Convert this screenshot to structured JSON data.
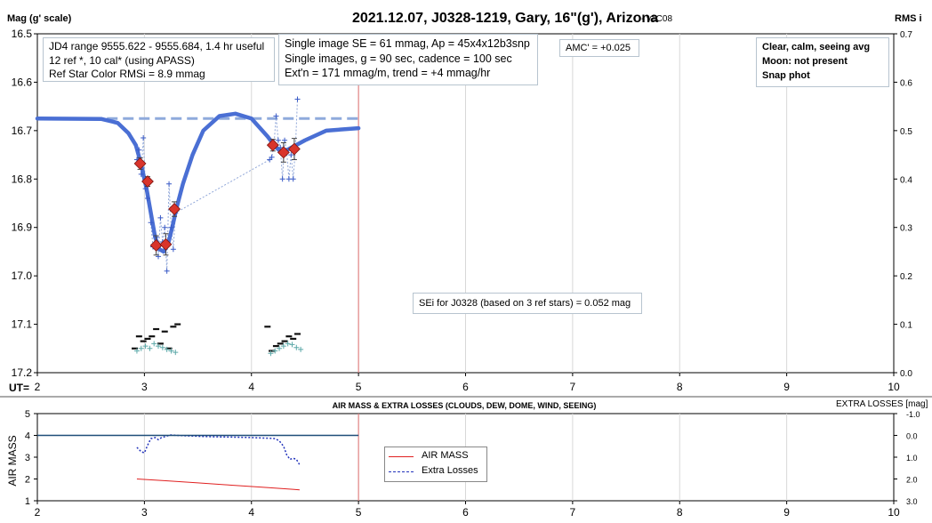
{
  "header": {
    "title": "2021.12.07, J0328-1219, Gary, 16\"(g'), Arizona",
    "version": "- v1C08",
    "y_left_label": "Mag (g' scale)",
    "y_right_label": "RMS i",
    "ut_label": "UT="
  },
  "info_boxes": {
    "box1": [
      "JD4 range 9555.622 - 9555.684, 1.4 hr useful",
      "12 ref *, 10 cal* (using APASS)",
      "Ref Star Color RMSi = 8.9 mmag"
    ],
    "box2": [
      "Single image SE = 61 mmag, Ap = 45x4x12b3snp",
      "Single images, g = 90 sec, cadence = 100 sec",
      "Ext'n = 171 mmag/m, trend = +4 mmag/hr"
    ],
    "amc": "AMC' = +0.025",
    "conditions": [
      "Clear, calm, seeing avg",
      "Moon: not present",
      "Snap phot"
    ],
    "sei": "SEi for J0328 (based on 3 ref stars) = 0.052 mag"
  },
  "lower_panel": {
    "title": "AIR MASS & EXTRA LOSSES (CLOUDS, DEW, DOME, WIND, SEEING)",
    "y_left_label": "AIR MASS",
    "y_right_label": "EXTRA LOSSES [mag]",
    "legend": [
      "AIR MASS",
      "Extra Losses"
    ]
  },
  "colors": {
    "model": "#4a6fd4",
    "reference": "#8faadc",
    "binned": "#d9342b",
    "raw": "#3a5bc7",
    "rms": "#111111",
    "teal": "#5ba8a8",
    "cursor": "#e07070",
    "airmass": "#e02020",
    "losses": "#2233bb"
  },
  "chart_data": [
    {
      "type": "scatter",
      "title": "2021.12.07, J0328-1219, Gary, 16\"(g'), Arizona",
      "xlabel": "UT=",
      "ylabel": "Mag (g' scale)",
      "y2label": "RMS i",
      "xlim": [
        2,
        10
      ],
      "ylim": [
        17.2,
        16.5
      ],
      "y2lim": [
        0.0,
        0.7
      ],
      "x_ticks": [
        "2",
        "3",
        "4",
        "5",
        "6",
        "7",
        "8",
        "9",
        "10"
      ],
      "y_ticks": [
        "16.5",
        "16.6",
        "16.7",
        "16.8",
        "16.9",
        "17.0",
        "17.1",
        "17.2"
      ],
      "y2_ticks": [
        "0.7",
        "0.6",
        "0.5",
        "0.4",
        "0.3",
        "0.2",
        "0.1",
        "0.0"
      ],
      "vertical_marker_x": 5.0,
      "reference_level": 16.675,
      "series": [
        {
          "kind": "model",
          "x": [
            2.0,
            2.6,
            2.75,
            2.85,
            2.92,
            2.97,
            3.02,
            3.06,
            3.1,
            3.14,
            3.18,
            3.22,
            3.26,
            3.3,
            3.36,
            3.45,
            3.55,
            3.7,
            3.85,
            4.0,
            4.15,
            4.22,
            4.28,
            4.35,
            4.5,
            4.7,
            5.0
          ],
          "y": [
            16.675,
            16.676,
            16.684,
            16.705,
            16.73,
            16.77,
            16.82,
            16.87,
            16.92,
            16.945,
            16.95,
            16.935,
            16.9,
            16.86,
            16.81,
            16.75,
            16.7,
            16.67,
            16.665,
            16.675,
            16.712,
            16.732,
            16.745,
            16.738,
            16.72,
            16.7,
            16.695
          ]
        },
        {
          "kind": "raw",
          "x": [
            2.93,
            2.95,
            2.97,
            2.99,
            3.01,
            3.03,
            3.06,
            3.08,
            3.11,
            3.13,
            3.15,
            3.17,
            3.19,
            3.21,
            3.23,
            3.25,
            3.27,
            3.29,
            4.17,
            4.19,
            4.21,
            4.23,
            4.25,
            4.27,
            4.29,
            4.31,
            4.33,
            4.35,
            4.37,
            4.39,
            4.41,
            4.43
          ],
          "y": [
            16.76,
            16.74,
            16.79,
            16.715,
            16.82,
            16.84,
            16.89,
            16.94,
            16.92,
            16.96,
            16.88,
            16.93,
            16.9,
            16.99,
            16.81,
            16.9,
            16.945,
            16.87,
            16.76,
            16.755,
            16.73,
            16.67,
            16.72,
            16.735,
            16.8,
            16.72,
            16.745,
            16.8,
            16.75,
            16.8,
            16.74,
            16.635
          ]
        },
        {
          "kind": "binned",
          "x": [
            2.96,
            3.03,
            3.11,
            3.2,
            3.28,
            4.2,
            4.3,
            4.4
          ],
          "y": [
            16.768,
            16.805,
            16.937,
            16.935,
            16.862,
            16.73,
            16.745,
            16.738
          ],
          "err": [
            0.012,
            0.01,
            0.02,
            0.022,
            0.015,
            0.012,
            0.02,
            0.022
          ]
        },
        {
          "kind": "rms_black",
          "axis": "y2",
          "x": [
            2.91,
            2.95,
            2.99,
            3.03,
            3.07,
            3.11,
            3.15,
            3.19,
            3.23,
            3.27,
            3.31,
            4.15,
            4.19,
            4.23,
            4.27,
            4.31,
            4.35,
            4.39,
            4.43
          ],
          "y": [
            0.05,
            0.075,
            0.065,
            0.07,
            0.075,
            0.09,
            0.06,
            0.085,
            0.05,
            0.095,
            0.1,
            0.095,
            0.045,
            0.055,
            0.06,
            0.065,
            0.075,
            0.07,
            0.08
          ]
        },
        {
          "kind": "rms_teal",
          "axis": "y2",
          "x": [
            2.93,
            2.97,
            3.01,
            3.05,
            3.09,
            3.13,
            3.17,
            3.21,
            3.25,
            3.29,
            4.18,
            4.22,
            4.26,
            4.3,
            4.34,
            4.38,
            4.42,
            4.46
          ],
          "y": [
            0.045,
            0.05,
            0.055,
            0.05,
            0.06,
            0.055,
            0.052,
            0.048,
            0.045,
            0.042,
            0.04,
            0.045,
            0.05,
            0.055,
            0.06,
            0.058,
            0.052,
            0.048
          ]
        }
      ]
    },
    {
      "type": "line",
      "title": "AIR MASS & EXTRA LOSSES (CLOUDS, DEW, DOME, WIND, SEEING)",
      "ylabel": "AIR MASS",
      "y2label": "EXTRA LOSSES [mag]",
      "xlim": [
        2,
        10
      ],
      "ylim": [
        1,
        5
      ],
      "y2lim": [
        3.0,
        -1.0
      ],
      "x_ticks": [
        "2",
        "3",
        "4",
        "5",
        "6",
        "7",
        "8",
        "9",
        "10"
      ],
      "y_ticks": [
        "5",
        "4",
        "3",
        "2",
        "1"
      ],
      "y2_ticks": [
        "-1.0",
        "0.0",
        "1.0",
        "2.0",
        "3.0"
      ],
      "series": [
        {
          "name": "AIR MASS",
          "axis": "y",
          "style": "solid",
          "x": [
            2.93,
            3.2,
            3.5,
            3.8,
            4.1,
            4.4,
            4.45
          ],
          "y": [
            2.0,
            1.92,
            1.82,
            1.72,
            1.62,
            1.52,
            1.5
          ]
        },
        {
          "name": "Extra Losses",
          "axis": "y2",
          "style": "dotted",
          "x": [
            2.93,
            2.97,
            3.0,
            3.03,
            3.06,
            3.1,
            3.13,
            3.16,
            3.2,
            3.24,
            3.3,
            3.4,
            3.55,
            3.7,
            3.85,
            4.0,
            4.1,
            4.17,
            4.22,
            4.26,
            4.3,
            4.33,
            4.36,
            4.39,
            4.42,
            4.45
          ],
          "y": [
            0.55,
            0.75,
            0.8,
            0.45,
            0.15,
            0.1,
            0.2,
            0.1,
            0.05,
            -0.02,
            0.0,
            0.02,
            0.05,
            0.07,
            0.08,
            0.1,
            0.12,
            0.13,
            0.15,
            0.25,
            0.5,
            0.9,
            1.1,
            1.05,
            1.1,
            1.35
          ]
        },
        {
          "name": "",
          "axis": "y",
          "style": "baseline",
          "x": [
            2.0,
            5.0
          ],
          "y": [
            4.0,
            4.0
          ]
        }
      ]
    }
  ]
}
